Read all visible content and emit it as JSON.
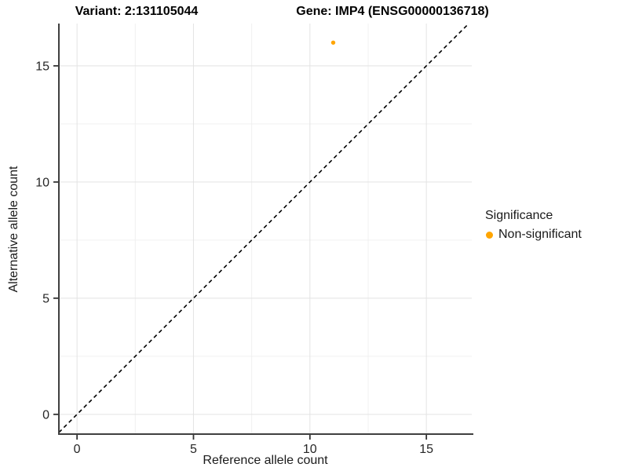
{
  "header": {
    "variant_title": "Variant: 2:131105044",
    "gene_title": "Gene: IMP4 (ENSG00000136718)"
  },
  "axes": {
    "x_title": "Reference allele count",
    "y_title": "Alternative allele count"
  },
  "legend": {
    "title": "Significance",
    "items": [
      {
        "label": "Non-significant",
        "color": "#FFA500"
      }
    ]
  },
  "chart_data": {
    "type": "scatter",
    "title": "Variant: 2:131105044 — Gene: IMP4 (ENSG00000136718)",
    "xlabel": "Reference allele count",
    "ylabel": "Alternative allele count",
    "x_ticks": [
      0,
      5,
      10,
      15
    ],
    "y_ticks": [
      0,
      5,
      10,
      15
    ],
    "minor_grid_step": 2.5,
    "xlim": [
      -0.78,
      16.95
    ],
    "ylim": [
      -0.85,
      16.82
    ],
    "grid": true,
    "legend_position": "right",
    "series": [
      {
        "name": "Non-significant",
        "color": "#FFA500",
        "points": [
          {
            "x": 11,
            "y": 16
          }
        ]
      }
    ],
    "reference_line": {
      "kind": "identity",
      "slope": 1,
      "intercept": 0,
      "style": "dashed",
      "color": "#000000"
    }
  },
  "style": {
    "grid_major_color": "#E3E3E3",
    "grid_minor_color": "#F0F0F0",
    "axis_line_color": "#3F3F3F",
    "tick_color": "#333333",
    "tick_label_color": "#262626",
    "point_color": "#FFA500"
  }
}
